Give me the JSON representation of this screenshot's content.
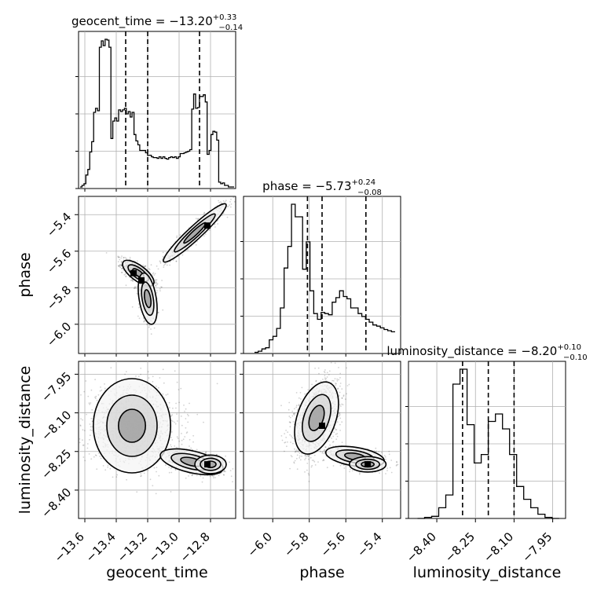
{
  "chart_data": {
    "type": "corner",
    "parameters": [
      {
        "key": "geocent_time",
        "axis_label": "geocent_time",
        "range": [
          -13.64,
          -12.64
        ],
        "ticks": [
          -13.6,
          -13.4,
          -13.2,
          -13.0,
          -12.8
        ],
        "tick_labels": [
          "−13.6",
          "−13.4",
          "−13.2",
          "−13.0",
          "−12.8"
        ]
      },
      {
        "key": "phase",
        "axis_label": "phase",
        "range": [
          -6.16,
          -5.3
        ],
        "ticks": [
          -6.0,
          -5.8,
          -5.6,
          -5.4
        ],
        "tick_labels": [
          "−6.0",
          "−5.8",
          "−5.6",
          "−5.4"
        ]
      },
      {
        "key": "luminosity_distance",
        "axis_label": "luminosity_distance",
        "range": [
          -8.51,
          -7.9
        ],
        "ticks": [
          -8.4,
          -8.25,
          -8.1,
          -7.95
        ],
        "tick_labels": [
          "−8.40",
          "−8.25",
          "−8.10",
          "−7.95"
        ]
      }
    ],
    "diagonal": [
      {
        "title": {
          "prefix": "geocent_time = ",
          "median": "−13.20",
          "plus": "+0.33",
          "minus": "−0.14"
        },
        "quantiles": [
          -13.34,
          -13.2,
          -12.87
        ],
        "hist_edges_range": [
          -13.63,
          -12.65
        ],
        "hist_counts": [
          2,
          4,
          6,
          17,
          24,
          46,
          59,
          96,
          101,
          98,
          178,
          186,
          180,
          188,
          187,
          178,
          63,
          85,
          89,
          85,
          99,
          97,
          99,
          101,
          94,
          97,
          90,
          96,
          68,
          60,
          55,
          48,
          48,
          48,
          45,
          42,
          42,
          40,
          39,
          39,
          38,
          40,
          38,
          40,
          38,
          37,
          39,
          40,
          39,
          40,
          38,
          40,
          44,
          44,
          45,
          46,
          47,
          49,
          100,
          119,
          101,
          102,
          116,
          116,
          118,
          109,
          43,
          48,
          68,
          72,
          71,
          61,
          8,
          6,
          7,
          4,
          4,
          2,
          2,
          2
        ]
      },
      {
        "title": {
          "prefix": "phase = ",
          "median": "−5.73",
          "plus": "+0.24",
          "minus": "−0.08"
        },
        "quantiles": [
          -5.81,
          -5.73,
          -5.49
        ],
        "hist_edges_range": [
          -6.1,
          -5.33
        ],
        "hist_counts": [
          2,
          4,
          8,
          10,
          24,
          30,
          44,
          80,
          150,
          188,
          262,
          240,
          240,
          148,
          196,
          110,
          70,
          60,
          72,
          70,
          68,
          90,
          98,
          110,
          100,
          96,
          80,
          80,
          70,
          65,
          60,
          55,
          50,
          48,
          45,
          42,
          40,
          38
        ]
      },
      {
        "title": {
          "prefix": "luminosity_distance = ",
          "median": "−8.20",
          "plus": "+0.10",
          "minus": "−0.10"
        },
        "quantiles": [
          -8.3,
          -8.2,
          -8.1
        ],
        "hist_edges_range": [
          -8.475,
          -7.925
        ],
        "hist_counts": [
          0,
          1,
          2,
          10,
          22,
          126,
          140,
          88,
          52,
          60,
          91,
          98,
          84,
          60,
          30,
          18,
          10,
          4,
          1,
          0
        ]
      }
    ],
    "pairs": [
      {
        "x": "geocent_time",
        "y": "phase",
        "clusters": [
          {
            "center": [
              -13.26,
              -5.72
            ],
            "sx": 0.05,
            "sy": 0.035,
            "rho": -0.7,
            "n": 900
          },
          {
            "center": [
              -13.2,
              -5.86
            ],
            "sx": 0.03,
            "sy": 0.07,
            "rho": -0.4,
            "n": 420
          },
          {
            "center": [
              -12.9,
              -5.5
            ],
            "sx": 0.1,
            "sy": 0.08,
            "rho": 0.95,
            "n": 700
          }
        ],
        "contour_levels": [
          1.0,
          1.7,
          2.3
        ],
        "modes": [
          [
            -13.29,
            -5.72
          ],
          [
            -13.24,
            -5.76
          ],
          [
            -12.82,
            -5.46
          ]
        ]
      },
      {
        "x": "geocent_time",
        "y": "luminosity_distance",
        "clusters": [
          {
            "center": [
              -13.3,
              -8.15
            ],
            "sx": 0.15,
            "sy": 0.075,
            "rho": 0.0,
            "n": 1300
          },
          {
            "center": [
              -12.92,
              -8.29
            ],
            "sx": 0.1,
            "sy": 0.025,
            "rho": -0.5,
            "n": 600
          },
          {
            "center": [
              -12.8,
              -8.3
            ],
            "sx": 0.05,
            "sy": 0.018,
            "rho": 0.0,
            "n": 300
          }
        ],
        "contour_levels": [
          1.0,
          1.6,
          2.3
        ],
        "modes": [
          [
            -12.82,
            -8.3
          ]
        ]
      },
      {
        "x": "phase",
        "y": "luminosity_distance",
        "clusters": [
          {
            "center": [
              -5.76,
              -8.12
            ],
            "sx": 0.06,
            "sy": 0.07,
            "rho": 0.4,
            "n": 1400
          },
          {
            "center": [
              -5.55,
              -8.27
            ],
            "sx": 0.08,
            "sy": 0.02,
            "rho": -0.4,
            "n": 450
          },
          {
            "center": [
              -5.48,
              -8.3
            ],
            "sx": 0.05,
            "sy": 0.015,
            "rho": 0.0,
            "n": 300
          }
        ],
        "contour_levels": [
          1.0,
          1.6,
          2.2
        ],
        "modes": [
          [
            -5.73,
            -8.15
          ],
          [
            -5.48,
            -8.3
          ]
        ]
      }
    ],
    "grid": true,
    "colors": {
      "line": "#000000",
      "grid": "#b0b0b0",
      "scatter": "#000000"
    }
  }
}
